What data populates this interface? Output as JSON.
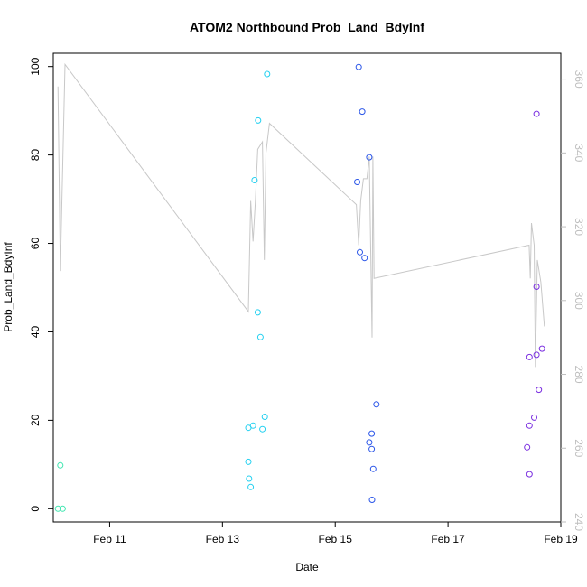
{
  "chart_data": {
    "type": "scatter",
    "title": "ATOM2 Northbound Prob_Land_BdyInf",
    "xlabel": "Date",
    "ylabel": "Prob_Land_BdyInf",
    "xlim": [
      "2024-02-10T00:00",
      "2024-02-19T00:00"
    ],
    "ylim": [
      -3,
      103
    ],
    "y2lim": [
      240,
      367
    ],
    "x_ticks": [
      "2024-02-11",
      "2024-02-13",
      "2024-02-15",
      "2024-02-17",
      "2024-02-19"
    ],
    "x_tick_labels": [
      "Feb 11",
      "Feb 13",
      "Feb 15",
      "Feb 17",
      "Feb 19"
    ],
    "y_ticks": [
      0,
      20,
      40,
      60,
      80,
      100
    ],
    "y_tick_labels": [
      "0",
      "20",
      "40",
      "60",
      "80",
      "100"
    ],
    "y2_ticks": [
      240,
      260,
      280,
      300,
      320,
      340,
      360
    ],
    "y2_tick_labels": [
      "240",
      "260",
      "280",
      "300",
      "320",
      "340",
      "360"
    ],
    "grid": false,
    "legend": "none",
    "colors": {
      "line": "#c8c8c8",
      "axis": "#000000",
      "right_axis": "#bebebe"
    },
    "points": [
      {
        "x": "2024-02-10T03:00",
        "y": 9.8,
        "color": "#3fe6b0"
      },
      {
        "x": "2024-02-10T02:00",
        "y": 0,
        "color": "#3fe6b0"
      },
      {
        "x": "2024-02-10T04:00",
        "y": 0,
        "color": "#3fe6b0"
      },
      {
        "x": "2024-02-13T13:40",
        "y": 74.3,
        "color": "#22d0f0"
      },
      {
        "x": "2024-02-13T15:10",
        "y": 87.8,
        "color": "#22d0f0"
      },
      {
        "x": "2024-02-13T19:00",
        "y": 98.3,
        "color": "#22d0f0"
      },
      {
        "x": "2024-02-13T15:00",
        "y": 44.4,
        "color": "#22d0f0"
      },
      {
        "x": "2024-02-13T16:10",
        "y": 38.8,
        "color": "#22d0f0"
      },
      {
        "x": "2024-02-13T11:00",
        "y": 18.3,
        "color": "#22d0f0"
      },
      {
        "x": "2024-02-13T13:00",
        "y": 18.8,
        "color": "#22d0f0"
      },
      {
        "x": "2024-02-13T18:00",
        "y": 20.8,
        "color": "#22d0f0"
      },
      {
        "x": "2024-02-13T17:00",
        "y": 18.0,
        "color": "#22d0f0"
      },
      {
        "x": "2024-02-13T11:00",
        "y": 10.6,
        "color": "#22d0f0"
      },
      {
        "x": "2024-02-13T11:20",
        "y": 6.8,
        "color": "#22d0f0"
      },
      {
        "x": "2024-02-13T12:00",
        "y": 4.9,
        "color": "#22d0f0"
      },
      {
        "x": "2024-02-15T10:00",
        "y": 99.9,
        "color": "#2a55e8"
      },
      {
        "x": "2024-02-15T11:30",
        "y": 89.8,
        "color": "#2a55e8"
      },
      {
        "x": "2024-02-15T14:30",
        "y": 79.5,
        "color": "#2a55e8"
      },
      {
        "x": "2024-02-15T09:20",
        "y": 73.9,
        "color": "#2a55e8"
      },
      {
        "x": "2024-02-15T10:30",
        "y": 58.0,
        "color": "#2a55e8"
      },
      {
        "x": "2024-02-15T12:30",
        "y": 56.7,
        "color": "#2a55e8"
      },
      {
        "x": "2024-02-15T17:30",
        "y": 23.6,
        "color": "#2a55e8"
      },
      {
        "x": "2024-02-15T15:30",
        "y": 17.0,
        "color": "#2a55e8"
      },
      {
        "x": "2024-02-15T14:30",
        "y": 15.0,
        "color": "#2a55e8"
      },
      {
        "x": "2024-02-15T15:30",
        "y": 13.5,
        "color": "#2a55e8"
      },
      {
        "x": "2024-02-15T16:10",
        "y": 9.0,
        "color": "#2a55e8"
      },
      {
        "x": "2024-02-15T15:40",
        "y": 2.0,
        "color": "#2a55e8"
      },
      {
        "x": "2024-02-18T13:40",
        "y": 89.3,
        "color": "#7a2ee0"
      },
      {
        "x": "2024-02-18T13:40",
        "y": 50.2,
        "color": "#7a2ee0"
      },
      {
        "x": "2024-02-18T10:40",
        "y": 34.3,
        "color": "#7a2ee0"
      },
      {
        "x": "2024-02-18T13:40",
        "y": 34.8,
        "color": "#7a2ee0"
      },
      {
        "x": "2024-02-18T16:00",
        "y": 36.2,
        "color": "#7a2ee0"
      },
      {
        "x": "2024-02-18T14:40",
        "y": 26.9,
        "color": "#7a2ee0"
      },
      {
        "x": "2024-02-18T12:40",
        "y": 20.6,
        "color": "#7a2ee0"
      },
      {
        "x": "2024-02-18T10:40",
        "y": 18.8,
        "color": "#7a2ee0"
      },
      {
        "x": "2024-02-18T09:40",
        "y": 13.9,
        "color": "#7a2ee0"
      },
      {
        "x": "2024-02-18T10:40",
        "y": 7.8,
        "color": "#7a2ee0"
      }
    ],
    "line_series": {
      "axis": "right",
      "color": "#c8c8c8",
      "points": [
        {
          "x": "2024-02-10T02:00",
          "y": 358
        },
        {
          "x": "2024-02-10T03:00",
          "y": 308
        },
        {
          "x": "2024-02-10T05:00",
          "y": 364
        },
        {
          "x": "2024-02-13T11:00",
          "y": 297
        },
        {
          "x": "2024-02-13T12:00",
          "y": 327
        },
        {
          "x": "2024-02-13T13:00",
          "y": 316
        },
        {
          "x": "2024-02-13T14:00",
          "y": 327
        },
        {
          "x": "2024-02-13T15:00",
          "y": 341
        },
        {
          "x": "2024-02-13T17:00",
          "y": 343
        },
        {
          "x": "2024-02-13T17:50",
          "y": 311
        },
        {
          "x": "2024-02-13T18:30",
          "y": 340
        },
        {
          "x": "2024-02-13T20:00",
          "y": 348
        },
        {
          "x": "2024-02-15T09:00",
          "y": 326
        },
        {
          "x": "2024-02-15T10:00",
          "y": 315
        },
        {
          "x": "2024-02-15T10:50",
          "y": 327
        },
        {
          "x": "2024-02-15T12:00",
          "y": 333
        },
        {
          "x": "2024-02-15T13:30",
          "y": 333
        },
        {
          "x": "2024-02-15T14:30",
          "y": 339
        },
        {
          "x": "2024-02-15T15:40",
          "y": 290
        },
        {
          "x": "2024-02-15T16:00",
          "y": 339
        },
        {
          "x": "2024-02-15T16:30",
          "y": 306
        },
        {
          "x": "2024-02-18T10:30",
          "y": 315
        },
        {
          "x": "2024-02-18T11:00",
          "y": 306
        },
        {
          "x": "2024-02-18T11:30",
          "y": 321
        },
        {
          "x": "2024-02-18T12:40",
          "y": 315
        },
        {
          "x": "2024-02-18T13:10",
          "y": 282
        },
        {
          "x": "2024-02-18T14:00",
          "y": 311
        },
        {
          "x": "2024-02-18T15:30",
          "y": 305
        },
        {
          "x": "2024-02-18T17:00",
          "y": 293
        }
      ]
    }
  }
}
